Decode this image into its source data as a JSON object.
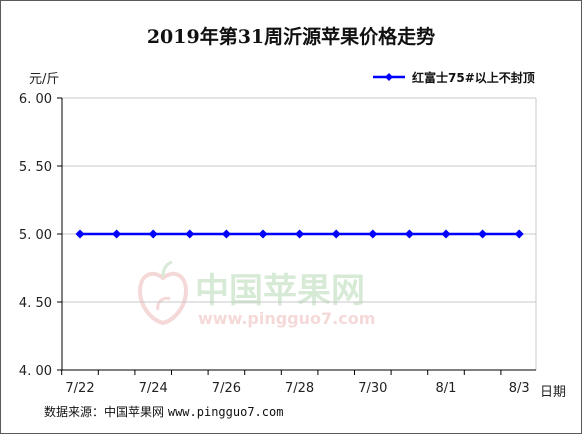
{
  "title": "2019年第31周沂源苹果价格走势",
  "y_unit": "元/斤",
  "x_unit": "日期",
  "source": {
    "label": "数据来源：中国苹果网",
    "url": "www.pingguo7.com"
  },
  "watermark": {
    "text": "中国苹果网",
    "url": "www.pingguo7.com"
  },
  "colors": {
    "series": "#0000ff",
    "grid": "#c8c8c8",
    "axis": "#000000"
  },
  "chart_data": {
    "type": "line",
    "title": "2019年第31周沂源苹果价格走势",
    "xlabel": "日期",
    "ylabel": "元/斤",
    "x_tick_labels": [
      "7/22",
      "7/24",
      "7/26",
      "7/28",
      "7/30",
      "8/1",
      "8/3"
    ],
    "y_tick_labels": [
      "6.00",
      "5.50",
      "5.00",
      "4.50",
      "4.00"
    ],
    "x": [
      "7/22",
      "7/23",
      "7/24",
      "7/25",
      "7/26",
      "7/27",
      "7/28",
      "7/29",
      "7/30",
      "7/31",
      "8/1",
      "8/2",
      "8/3"
    ],
    "series": [
      {
        "name": "红富士75#以上不封顶",
        "marker": "diamond",
        "values": [
          5.0,
          5.0,
          5.0,
          5.0,
          5.0,
          5.0,
          5.0,
          5.0,
          5.0,
          5.0,
          5.0,
          5.0,
          5.0
        ]
      }
    ],
    "ylim": [
      4.0,
      6.0
    ],
    "grid": "horizontal",
    "legend_position": "top-right"
  }
}
